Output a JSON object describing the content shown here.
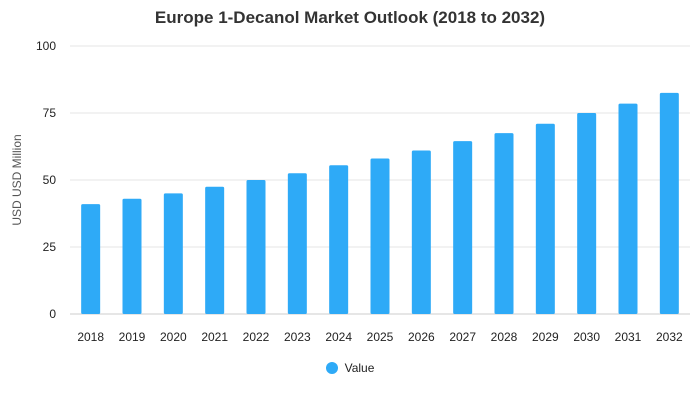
{
  "chart_data": {
    "type": "bar",
    "title": "Europe 1-Decanol Market Outlook (2018 to 2032)",
    "xlabel": "",
    "ylabel": "USD USD Million",
    "ylim": [
      0,
      100
    ],
    "yticks": [
      0,
      25,
      50,
      75,
      100
    ],
    "grid": true,
    "legend_position": "bottom",
    "categories": [
      "2018",
      "2019",
      "2020",
      "2021",
      "2022",
      "2023",
      "2024",
      "2025",
      "2026",
      "2027",
      "2028",
      "2029",
      "2030",
      "2031",
      "2032"
    ],
    "series": [
      {
        "name": "Value",
        "color": "#2eaaf7",
        "values": [
          41,
          43,
          45,
          47.5,
          50,
          52.5,
          55.5,
          58,
          61,
          64.5,
          67.5,
          71,
          75,
          78.5,
          82.5
        ]
      }
    ]
  }
}
